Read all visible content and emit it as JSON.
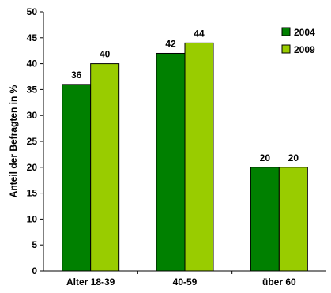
{
  "chart_data": {
    "type": "bar",
    "categories": [
      "Alter 18-39",
      "40-59",
      "über 60"
    ],
    "series": [
      {
        "name": "2004",
        "values": [
          36,
          42,
          20
        ],
        "color": "#008000"
      },
      {
        "name": "2009",
        "values": [
          40,
          44,
          20
        ],
        "color": "#99cc00"
      }
    ],
    "xlabel": "",
    "ylabel": "Anteil der Befragten in %",
    "ylim": [
      0,
      50
    ],
    "yticks": [
      0,
      5,
      10,
      15,
      20,
      25,
      30,
      35,
      40,
      45,
      50
    ],
    "grid": false,
    "legend_position": "top-right",
    "data_labels": true
  }
}
